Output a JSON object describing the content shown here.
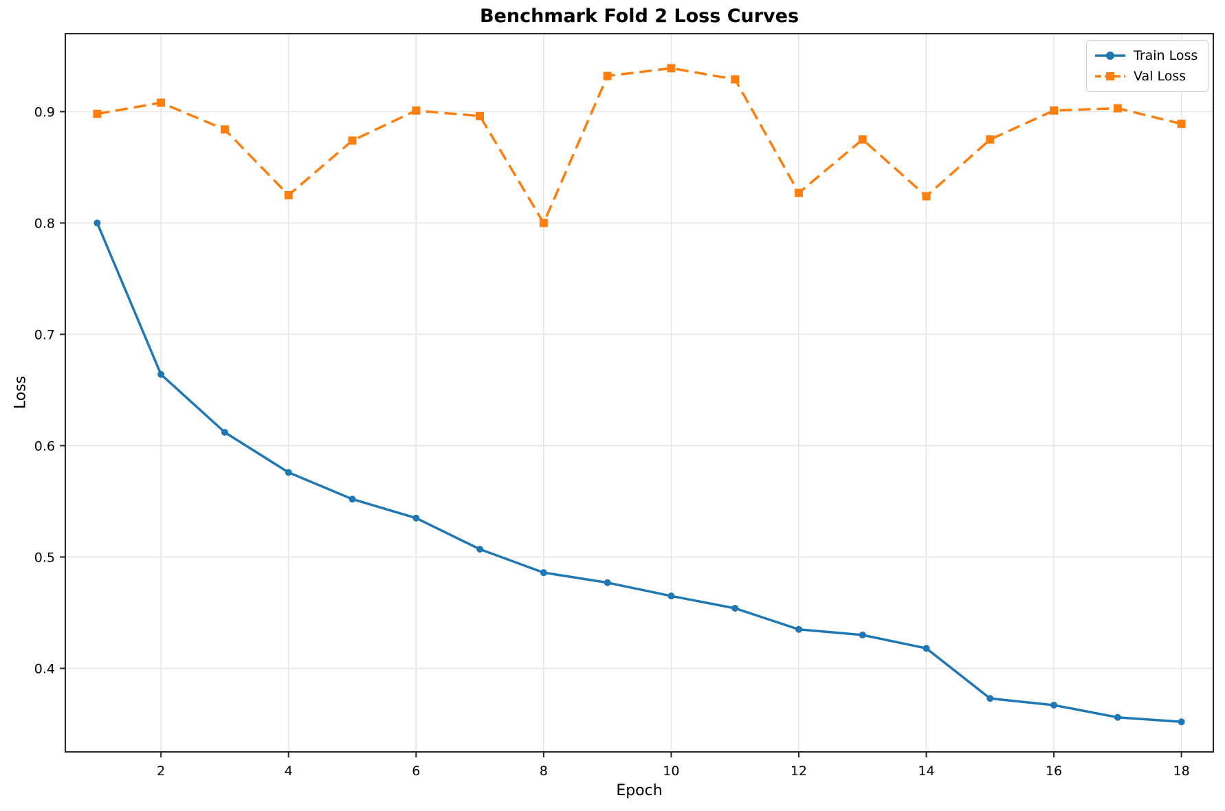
{
  "chart_data": {
    "type": "line",
    "title": "Benchmark Fold 2 Loss Curves",
    "xlabel": "Epoch",
    "ylabel": "Loss",
    "x": [
      1,
      2,
      3,
      4,
      5,
      6,
      7,
      8,
      9,
      10,
      11,
      12,
      13,
      14,
      15,
      16,
      17,
      18
    ],
    "series": [
      {
        "name": "Train Loss",
        "color": "#1f77b4",
        "line_style": "solid",
        "marker": "circle",
        "values": [
          0.8,
          0.664,
          0.612,
          0.576,
          0.552,
          0.535,
          0.507,
          0.486,
          0.477,
          0.465,
          0.454,
          0.435,
          0.43,
          0.418,
          0.373,
          0.367,
          0.356,
          0.352
        ]
      },
      {
        "name": "Val Loss",
        "color": "#ff7f0e",
        "line_style": "dashed",
        "marker": "square",
        "values": [
          0.898,
          0.908,
          0.884,
          0.825,
          0.874,
          0.901,
          0.896,
          0.8,
          0.932,
          0.939,
          0.929,
          0.827,
          0.875,
          0.824,
          0.875,
          0.901,
          0.903,
          0.889
        ]
      }
    ],
    "xticks": [
      2,
      4,
      6,
      8,
      10,
      12,
      14,
      16,
      18
    ],
    "yticks": [
      0.4,
      0.5,
      0.6,
      0.7,
      0.8,
      0.9
    ],
    "xlim": [
      0.5,
      18.5
    ],
    "ylim": [
      0.325,
      0.97
    ],
    "grid": true,
    "legend_position": "upper right"
  },
  "style_colors": {
    "grid": "#e5e5e5",
    "spine": "#262626",
    "text": "#000000",
    "legend_border": "#cccccc"
  }
}
